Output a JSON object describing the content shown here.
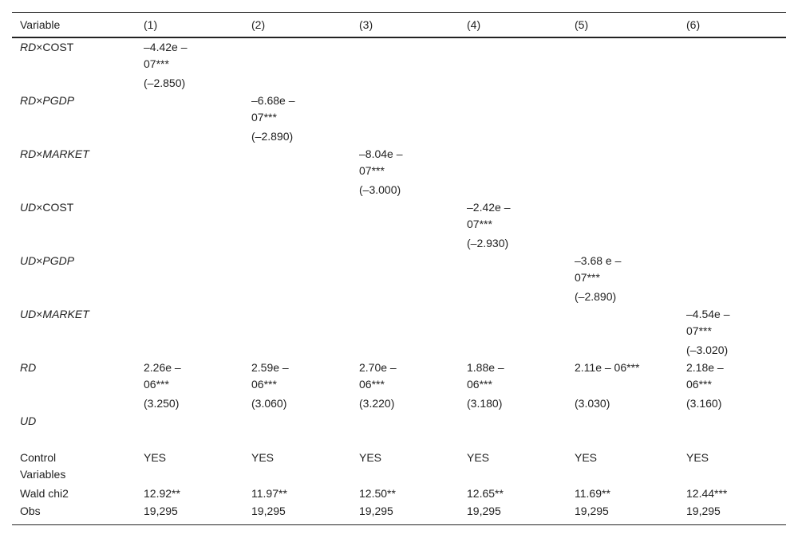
{
  "header": [
    "Variable",
    "(1)",
    "(2)",
    "(3)",
    "(4)",
    "(5)",
    "(6)"
  ],
  "interactions": [
    {
      "prefix": "RD",
      "suffix": "COST",
      "suffix_italic": false,
      "col": 1,
      "coef_line1": "–4.42e –",
      "coef_line2": "07***",
      "t": "(–2.850)"
    },
    {
      "prefix": "RD",
      "suffix": "PGDP",
      "suffix_italic": true,
      "col": 2,
      "coef_line1": "–6.68e –",
      "coef_line2": "07***",
      "t": "(–2.890)"
    },
    {
      "prefix": "RD",
      "suffix": "MARKET",
      "suffix_italic": true,
      "col": 3,
      "coef_line1": "–8.04e –",
      "coef_line2": "07***",
      "t": "(–3.000)"
    },
    {
      "prefix": "UD",
      "suffix": "COST",
      "suffix_italic": false,
      "col": 4,
      "coef_line1": "–2.42e –",
      "coef_line2": "07***",
      "t": "(–2.930)"
    },
    {
      "prefix": "UD",
      "suffix": "PGDP",
      "suffix_italic": true,
      "col": 5,
      "coef_line1": "–3.68 e –",
      "coef_line2": "07***",
      "t": "(–2.890)"
    },
    {
      "prefix": "UD",
      "suffix": "MARKET",
      "suffix_italic": true,
      "col": 6,
      "coef_line1": "–4.54e –",
      "coef_line2": "07***",
      "t": "(–3.020)"
    }
  ],
  "times_sign": "×",
  "rd_row": {
    "label": "RD",
    "coefs": [
      {
        "l1": "2.26e –",
        "l2": "06***"
      },
      {
        "l1": "2.59e –",
        "l2": "06***"
      },
      {
        "l1": "2.70e –",
        "l2": "06***"
      },
      {
        "l1": "1.88e –",
        "l2": "06***"
      },
      {
        "l1": "2.11e – 06***",
        "l2": ""
      },
      {
        "l1": "2.18e –",
        "l2": "06***"
      }
    ],
    "t": [
      "(3.250)",
      "(3.060)",
      "(3.220)",
      "(3.180)",
      "(3.030)",
      "(3.160)"
    ]
  },
  "ud_row": {
    "label": "UD"
  },
  "control_row": {
    "label_line1": "Control",
    "label_line2": "Variables",
    "values": [
      "YES",
      "YES",
      "YES",
      "YES",
      "YES",
      "YES"
    ]
  },
  "wald_row": {
    "label": "Wald chi2",
    "values": [
      "12.92**",
      "11.97**",
      "12.50**",
      "12.65**",
      "11.69**",
      "12.44***"
    ]
  },
  "obs_row": {
    "label": "Obs",
    "values": [
      "19,295",
      "19,295",
      "19,295",
      "19,295",
      "19,295",
      "19,295"
    ]
  }
}
